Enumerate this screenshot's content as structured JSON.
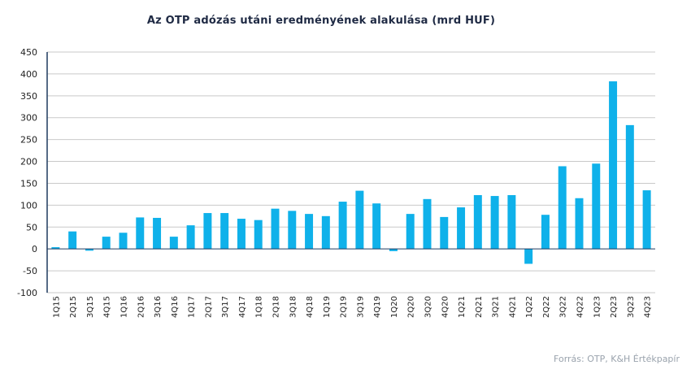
{
  "chart_data": {
    "type": "bar",
    "title": "Az OTP adózás utáni eredményének alakulása (mrd HUF)",
    "source": "Forrás: OTP, K&H Értékpapír",
    "xlabel": "",
    "ylabel": "",
    "ylim": [
      -100,
      450
    ],
    "yticks": [
      450,
      400,
      350,
      300,
      250,
      200,
      150,
      100,
      50,
      0,
      -50,
      -100
    ],
    "grid": true,
    "bar_color": "#0fb1ea",
    "categories": [
      "1Q15",
      "2Q15",
      "3Q15",
      "4Q15",
      "1Q16",
      "2Q16",
      "3Q16",
      "4Q16",
      "1Q17",
      "2Q17",
      "3Q17",
      "4Q17",
      "1Q18",
      "2Q18",
      "3Q18",
      "4Q18",
      "1Q19",
      "2Q19",
      "3Q19",
      "4Q19",
      "1Q20",
      "2Q20",
      "3Q20",
      "4Q20",
      "1Q21",
      "2Q21",
      "3Q21",
      "4Q21",
      "1Q22",
      "2Q22",
      "3Q22",
      "4Q22",
      "1Q23",
      "2Q23",
      "3Q23",
      "4Q23"
    ],
    "values": [
      4,
      40,
      -4,
      28,
      37,
      72,
      71,
      28,
      54,
      82,
      82,
      69,
      66,
      92,
      87,
      80,
      75,
      108,
      133,
      104,
      -5,
      80,
      114,
      73,
      95,
      123,
      121,
      123,
      -34,
      78,
      189,
      116,
      195,
      383,
      283,
      134
    ]
  }
}
